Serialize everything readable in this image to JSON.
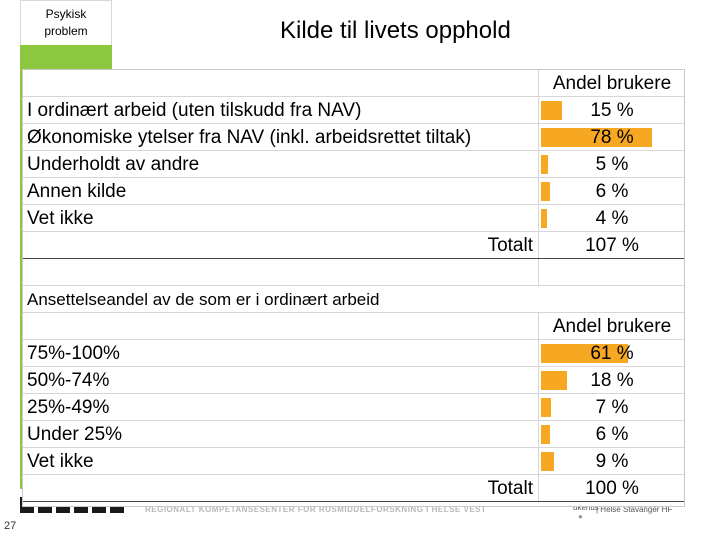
{
  "slide": {
    "tag_line1": "Psykisk",
    "tag_line2": "problem",
    "title": "Kilde til livets opphold",
    "number": "27"
  },
  "footer": {
    "text": "REGIONALT KOMPETANSESENTER FOR RUSMIDDELFORSKNING I HELSE VEST",
    "mini": "ukehus",
    "partner": "| Helse Stavanger HF"
  },
  "colors": {
    "bar": "#f7a823",
    "accent": "#8dc63f"
  },
  "table1": {
    "header": "Andel brukere",
    "rows": [
      {
        "label": "I ordinært arbeid (uten tilskudd fra NAV)",
        "value": 15,
        "display": "15 %"
      },
      {
        "label": "Økonomiske ytelser fra NAV (inkl. arbeidsrettet tiltak)",
        "value": 78,
        "display": "78 %"
      },
      {
        "label": "Underholdt av andre",
        "value": 5,
        "display": "5 %"
      },
      {
        "label": "Annen kilde",
        "value": 6,
        "display": "6 %"
      },
      {
        "label": "Vet ikke",
        "value": 4,
        "display": "4 %"
      }
    ],
    "total_label": "Totalt",
    "total_value": "107 %"
  },
  "table2": {
    "title": "Ansettelseandel av de som er i ordinært arbeid",
    "header": "Andel brukere",
    "rows": [
      {
        "label": "75%-100%",
        "value": 61,
        "display": "61 %"
      },
      {
        "label": "50%-74%",
        "value": 18,
        "display": "18 %"
      },
      {
        "label": "25%-49%",
        "value": 7,
        "display": "7 %"
      },
      {
        "label": "Under 25%",
        "value": 6,
        "display": "6 %"
      },
      {
        "label": "Vet ikke",
        "value": 9,
        "display": "9 %"
      }
    ],
    "total_label": "Totalt",
    "total_value": "100 %"
  }
}
